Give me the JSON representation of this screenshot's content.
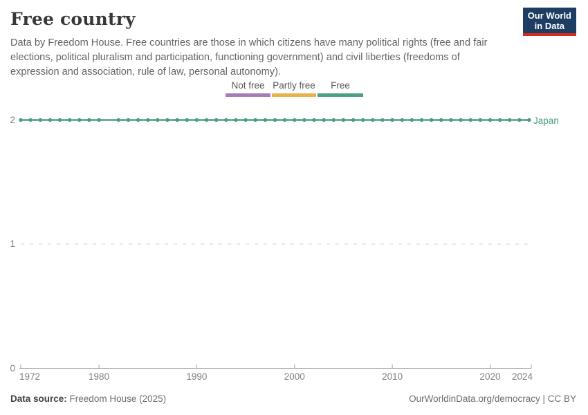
{
  "header": {
    "title": "Free country",
    "subtitle": "Data by Freedom House. Free countries are those in which citizens have many political rights (free and fair elections, political pluralism and participation, functioning government) and civil liberties (freedoms of expression and association, rule of law, personal autonomy)."
  },
  "logo": {
    "line1": "Our World",
    "line2": "in Data",
    "bg_color": "#1d3d63",
    "accent_color": "#d42b21"
  },
  "legend": {
    "items": [
      {
        "label": "Not free",
        "color": "#a77bb8"
      },
      {
        "label": "Partly free",
        "color": "#e7b34a"
      },
      {
        "label": "Free",
        "color": "#4c9f85"
      }
    ]
  },
  "chart_data": {
    "type": "line",
    "title": "Free country",
    "x": [
      1972,
      1973,
      1974,
      1975,
      1976,
      1977,
      1978,
      1979,
      1980,
      1982,
      1983,
      1984,
      1985,
      1986,
      1987,
      1988,
      1989,
      1990,
      1991,
      1992,
      1993,
      1994,
      1995,
      1996,
      1997,
      1998,
      1999,
      2000,
      2001,
      2002,
      2003,
      2004,
      2005,
      2006,
      2007,
      2008,
      2009,
      2010,
      2011,
      2012,
      2013,
      2014,
      2015,
      2016,
      2017,
      2018,
      2019,
      2020,
      2021,
      2022,
      2023,
      2024
    ],
    "series": [
      {
        "name": "Japan",
        "color": "#4a9d82",
        "values": [
          2,
          2,
          2,
          2,
          2,
          2,
          2,
          2,
          2,
          2,
          2,
          2,
          2,
          2,
          2,
          2,
          2,
          2,
          2,
          2,
          2,
          2,
          2,
          2,
          2,
          2,
          2,
          2,
          2,
          2,
          2,
          2,
          2,
          2,
          2,
          2,
          2,
          2,
          2,
          2,
          2,
          2,
          2,
          2,
          2,
          2,
          2,
          2,
          2,
          2,
          2,
          2
        ]
      }
    ],
    "xlim": [
      1972,
      2024
    ],
    "ylim": [
      0,
      2
    ],
    "x_ticks": [
      1972,
      1980,
      1990,
      2000,
      2010,
      2020,
      2024
    ],
    "y_ticks": [
      0,
      1,
      2
    ],
    "missing_marker_years": [
      1981
    ],
    "grid": "horizontal dashed gridlines at y=1 and y=2, solid baseline at y=0",
    "legend_position": "top-center",
    "category_scale": {
      "0": "Not free",
      "1": "Partly free",
      "2": "Free"
    }
  },
  "footer": {
    "source_label": "Data source:",
    "source_value": "Freedom House (2025)",
    "right": "OurWorldinData.org/democracy | CC BY"
  },
  "colors": {
    "line": "#4a9d82",
    "gridline": "#e2e2e2",
    "axis": "#a3a3a3",
    "tick_label": "#7f7f7f"
  }
}
